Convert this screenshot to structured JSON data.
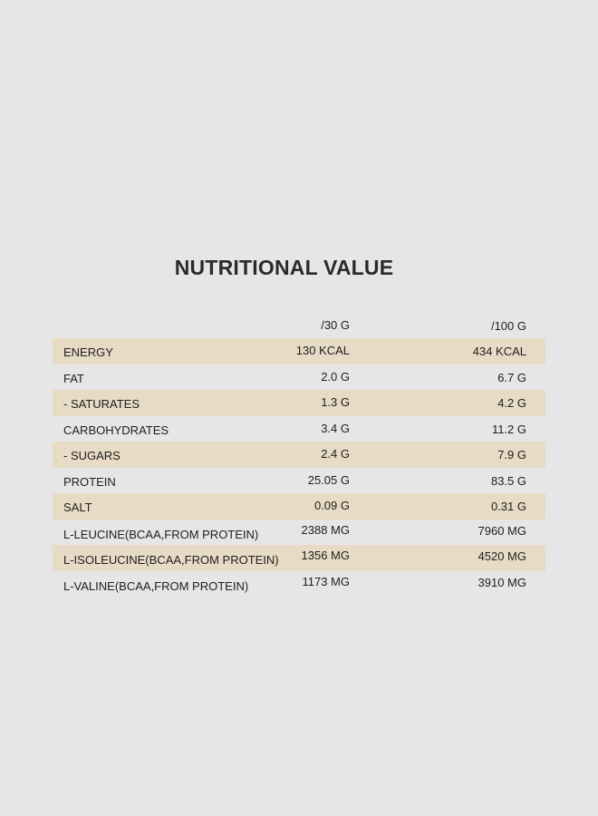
{
  "title": "NUTRITIONAL VALUE",
  "columns": {
    "per_30g": "/30 G",
    "per_100g": "/100 G"
  },
  "rows": [
    {
      "name": "ENERGY",
      "per_30g": "130 KCAL",
      "per_100g": "434 KCAL"
    },
    {
      "name": "FAT",
      "per_30g": "2.0 G",
      "per_100g": "6.7 G"
    },
    {
      "name": "- SATURATES",
      "per_30g": "1.3 G",
      "per_100g": "4.2 G"
    },
    {
      "name": "CARBOHYDRATES",
      "per_30g": "3.4 G",
      "per_100g": "11.2 G"
    },
    {
      "name": "- SUGARS",
      "per_30g": "2.4 G",
      "per_100g": "7.9 G"
    },
    {
      "name": "PROTEIN",
      "per_30g": "25.05 G",
      "per_100g": "83.5 G"
    },
    {
      "name": "SALT",
      "per_30g": "0.09 G",
      "per_100g": "0.31 G"
    },
    {
      "name": "L-LEUCINE(BCAA,FROM PROTEIN)",
      "per_30g": "2388 MG",
      "per_100g": "7960 MG"
    },
    {
      "name": "L-ISOLEUCINE(BCAA,FROM PROTEIN)",
      "per_30g": "1356 MG",
      "per_100g": "4520 MG"
    },
    {
      "name": "L-VALINE(BCAA,FROM PROTEIN)",
      "per_30g": "1173 MG",
      "per_100g": "3910 MG"
    }
  ],
  "colors": {
    "background": "#e6e6e6",
    "shaded_row": "#e7dbc5",
    "text": "#1e1e1e"
  }
}
